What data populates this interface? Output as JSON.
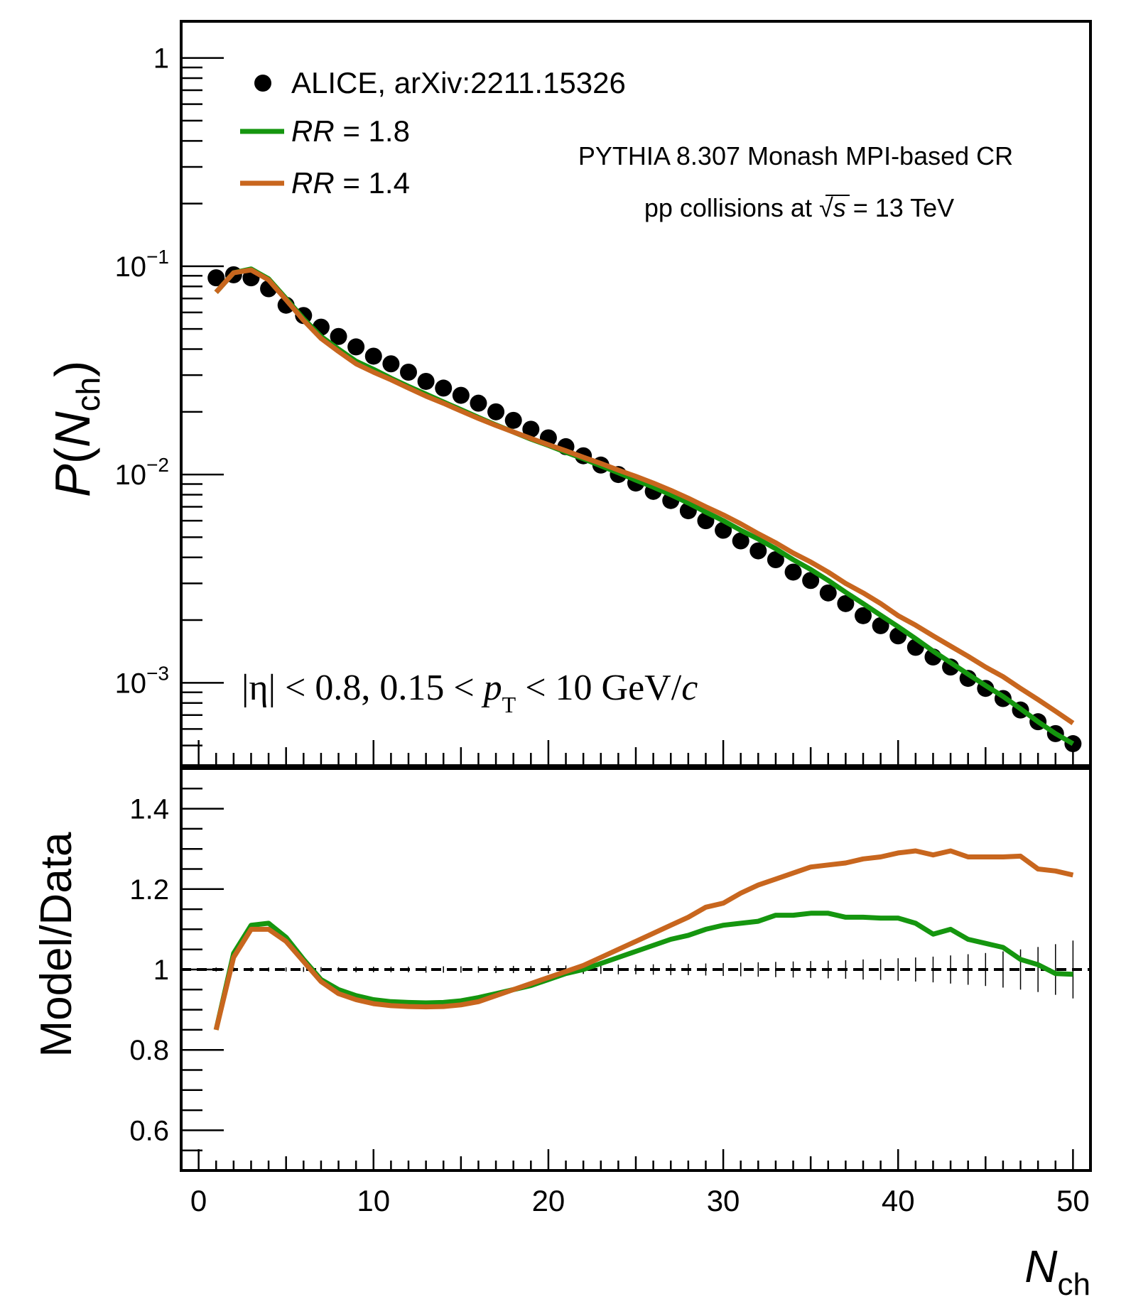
{
  "chart_data": [
    {
      "type": "scatter+line",
      "panel": "top",
      "yscale": "log",
      "ylabel_P": "P",
      "ylabel_N": "N",
      "ylabel_sub": "ch",
      "xlim": [
        -1,
        51
      ],
      "ylim": [
        0.0004,
        1.5
      ],
      "x_ticks": [
        0,
        10,
        20,
        30,
        40,
        50
      ],
      "y_ticks": [
        {
          "value": 1,
          "base": "1",
          "exp": ""
        },
        {
          "value": 0.1,
          "base": "10",
          "exp": "−1"
        },
        {
          "value": 0.01,
          "base": "10",
          "exp": "−2"
        },
        {
          "value": 0.001,
          "base": "10",
          "exp": "−3"
        }
      ],
      "legend": {
        "data_label": "ALICE, arXiv:2211.15326",
        "rr_prefix": "RR",
        "rr18_value": "= 1.8",
        "rr14_value": "= 1.4"
      },
      "annotations": {
        "generator": "PYTHIA 8.307 Monash MPI-based CR",
        "collisions_prefix": "pp collisions at",
        "collisions_s": "s",
        "collisions_suffix": "= 13 TeV",
        "cuts_eta": "|η| < 0.8, 0.15 < ",
        "cuts_p": "p",
        "cuts_T": "T",
        "cuts_tail": " < 10  GeV/",
        "cuts_c": "c"
      },
      "x": [
        1,
        2,
        3,
        4,
        5,
        6,
        7,
        8,
        9,
        10,
        11,
        12,
        13,
        14,
        15,
        16,
        17,
        18,
        19,
        20,
        21,
        22,
        23,
        24,
        25,
        26,
        27,
        28,
        29,
        30,
        31,
        32,
        33,
        34,
        35,
        36,
        37,
        38,
        39,
        40,
        41,
        42,
        43,
        44,
        45,
        46,
        47,
        48,
        49,
        50
      ],
      "series": [
        {
          "name": "ALICE, arXiv:2211.15326",
          "style": "markers",
          "color": "#000000",
          "values": [
            0.088,
            0.091,
            0.088,
            0.078,
            0.065,
            0.058,
            0.051,
            0.046,
            0.041,
            0.037,
            0.034,
            0.031,
            0.028,
            0.026,
            0.024,
            0.022,
            0.02,
            0.0182,
            0.0165,
            0.015,
            0.0136,
            0.0123,
            0.0111,
            0.01,
            0.0091,
            0.0083,
            0.0075,
            0.0067,
            0.006,
            0.0054,
            0.0048,
            0.0043,
            0.0039,
            0.0034,
            0.0031,
            0.0027,
            0.0024,
            0.0021,
            0.00188,
            0.00168,
            0.00148,
            0.00133,
            0.00119,
            0.00105,
            0.00094,
            0.00084,
            0.00074,
            0.00065,
            0.00057,
            0.00051
          ]
        },
        {
          "name": "RR = 1.8",
          "style": "line",
          "color": "#15960f",
          "values": [
            0.075,
            0.093,
            0.097,
            0.087,
            0.07,
            0.056,
            0.046,
            0.04,
            0.035,
            0.032,
            0.029,
            0.0265,
            0.0243,
            0.0223,
            0.0205,
            0.0188,
            0.0173,
            0.016,
            0.0148,
            0.0138,
            0.0128,
            0.0119,
            0.011,
            0.0102,
            0.0094,
            0.0087,
            0.008,
            0.0073,
            0.0066,
            0.006,
            0.0054,
            0.0049,
            0.0044,
            0.0039,
            0.0035,
            0.0031,
            0.00272,
            0.0024,
            0.00211,
            0.00186,
            0.00163,
            0.00142,
            0.00125,
            0.0011,
            0.00097,
            0.00086,
            0.00075,
            0.00065,
            0.00057,
            0.00051
          ]
        },
        {
          "name": "RR = 1.4",
          "style": "line",
          "color": "#c8661e",
          "values": [
            0.075,
            0.093,
            0.096,
            0.086,
            0.069,
            0.055,
            0.045,
            0.039,
            0.034,
            0.031,
            0.0285,
            0.026,
            0.0238,
            0.022,
            0.0202,
            0.0186,
            0.0172,
            0.016,
            0.0149,
            0.0139,
            0.013,
            0.0121,
            0.0113,
            0.0105,
            0.0098,
            0.0091,
            0.0084,
            0.0077,
            0.007,
            0.0064,
            0.0058,
            0.0052,
            0.0047,
            0.0042,
            0.0038,
            0.0034,
            0.003,
            0.0027,
            0.0024,
            0.0021,
            0.00189,
            0.00168,
            0.0015,
            0.00134,
            0.00119,
            0.00107,
            0.00094,
            0.00083,
            0.00073,
            0.00064
          ]
        }
      ]
    },
    {
      "type": "line",
      "panel": "bottom",
      "ylabel": "Model/Data",
      "xlabel_N": "N",
      "xlabel_sub": "ch",
      "xlim": [
        -1,
        51
      ],
      "ylim": [
        0.5,
        1.5
      ],
      "reference_line": 1,
      "x_ticks": [
        0,
        10,
        20,
        30,
        40,
        50
      ],
      "x_tick_labels": [
        "0",
        "10",
        "20",
        "30",
        "40",
        "50"
      ],
      "y_ticks": [
        0.6,
        0.8,
        1,
        1.2,
        1.4
      ],
      "y_tick_labels": [
        "0.6",
        "0.8",
        "1",
        "1.2",
        "1.4"
      ],
      "x": [
        1,
        2,
        3,
        4,
        5,
        6,
        7,
        8,
        9,
        10,
        11,
        12,
        13,
        14,
        15,
        16,
        17,
        18,
        19,
        20,
        21,
        22,
        23,
        24,
        25,
        26,
        27,
        28,
        29,
        30,
        31,
        32,
        33,
        34,
        35,
        36,
        37,
        38,
        39,
        40,
        41,
        42,
        43,
        44,
        45,
        46,
        47,
        48,
        49,
        50
      ],
      "data_uncertainty": [
        0.005,
        0.005,
        0.005,
        0.005,
        0.005,
        0.006,
        0.006,
        0.006,
        0.007,
        0.007,
        0.007,
        0.007,
        0.008,
        0.008,
        0.008,
        0.008,
        0.009,
        0.009,
        0.009,
        0.01,
        0.01,
        0.011,
        0.011,
        0.012,
        0.012,
        0.013,
        0.014,
        0.014,
        0.015,
        0.016,
        0.017,
        0.018,
        0.019,
        0.02,
        0.021,
        0.022,
        0.023,
        0.025,
        0.026,
        0.028,
        0.03,
        0.032,
        0.035,
        0.038,
        0.041,
        0.045,
        0.05,
        0.056,
        0.063,
        0.072
      ],
      "series": [
        {
          "name": "RR = 1.8",
          "color": "#15960f",
          "values": [
            0.85,
            1.04,
            1.11,
            1.115,
            1.08,
            1.025,
            0.975,
            0.95,
            0.935,
            0.925,
            0.92,
            0.918,
            0.917,
            0.918,
            0.922,
            0.93,
            0.94,
            0.95,
            0.96,
            0.975,
            0.99,
            1.0,
            1.015,
            1.03,
            1.045,
            1.06,
            1.075,
            1.085,
            1.1,
            1.11,
            1.115,
            1.12,
            1.135,
            1.135,
            1.14,
            1.14,
            1.13,
            1.13,
            1.128,
            1.128,
            1.115,
            1.088,
            1.1,
            1.075,
            1.065,
            1.055,
            1.025,
            1.012,
            0.99,
            0.988
          ]
        },
        {
          "name": "RR = 1.4",
          "color": "#c8661e",
          "values": [
            0.85,
            1.03,
            1.1,
            1.1,
            1.07,
            1.02,
            0.97,
            0.94,
            0.925,
            0.915,
            0.91,
            0.908,
            0.907,
            0.908,
            0.912,
            0.92,
            0.935,
            0.95,
            0.965,
            0.98,
            0.995,
            1.01,
            1.03,
            1.05,
            1.07,
            1.09,
            1.11,
            1.13,
            1.155,
            1.165,
            1.19,
            1.21,
            1.225,
            1.24,
            1.255,
            1.26,
            1.265,
            1.275,
            1.28,
            1.29,
            1.295,
            1.285,
            1.295,
            1.28,
            1.28,
            1.28,
            1.282,
            1.25,
            1.245,
            1.235
          ]
        }
      ]
    }
  ]
}
